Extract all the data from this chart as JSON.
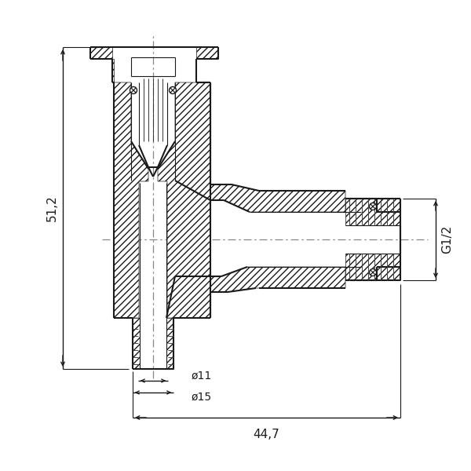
{
  "bg_color": "#ffffff",
  "line_color": "#1a1a1a",
  "dim_51_2": "51,2",
  "dim_44_7": "44,7",
  "dim_d11": "ø11",
  "dim_d15": "ø15",
  "dim_G12": "G1/2",
  "fig_width": 6.0,
  "fig_height": 6.0,
  "dpi": 100
}
